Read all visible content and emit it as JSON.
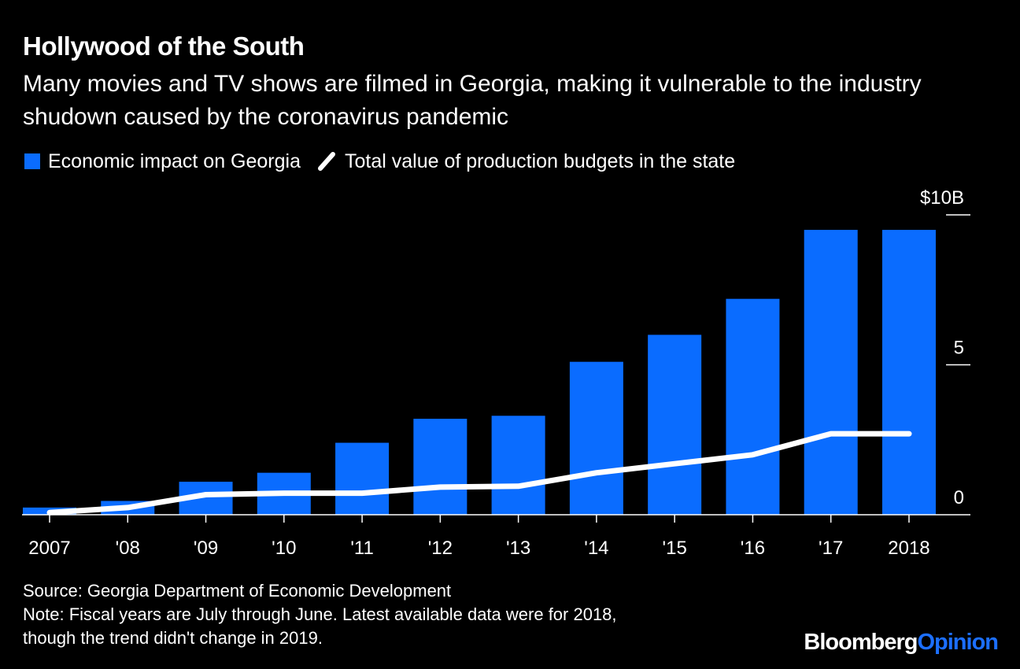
{
  "header": {
    "title": "Hollywood of the South",
    "subtitle": "Many movies and TV shows are filmed in Georgia, making it vulnerable to the industry shudown caused by the coronavirus pandemic"
  },
  "legend": {
    "bar_label": "Economic impact on Georgia",
    "line_label": "Total value of production budgets in the state"
  },
  "colors": {
    "background": "#000000",
    "bar": "#0a6cff",
    "line": "#ffffff",
    "text": "#ffffff",
    "brand_accent": "#1c6fff"
  },
  "chart_data": {
    "type": "bar",
    "categories": [
      "2007",
      "'08",
      "'09",
      "'10",
      "'11",
      "'12",
      "'13",
      "'14",
      "'15",
      "'16",
      "'17",
      "2018"
    ],
    "series": [
      {
        "name": "Economic impact on Georgia",
        "type": "bar",
        "values": [
          0.24,
          0.46,
          1.1,
          1.4,
          2.4,
          3.2,
          3.3,
          5.1,
          6.0,
          7.2,
          9.5,
          9.5
        ]
      },
      {
        "name": "Total value of production budgets in the state",
        "type": "line",
        "values": [
          0.07,
          0.24,
          0.67,
          0.72,
          0.72,
          0.92,
          0.95,
          1.4,
          1.7,
          2.0,
          2.7,
          2.7
        ]
      }
    ],
    "y_ticks": [
      {
        "value": 0,
        "label": "0"
      },
      {
        "value": 5,
        "label": "5"
      },
      {
        "value": 10,
        "label": "$10B"
      }
    ],
    "ylim": [
      0,
      10
    ],
    "grid": false,
    "legend_position": "top-left"
  },
  "footer": {
    "source": "Source: Georgia Department of Economic Development",
    "note_line1": "Note: Fiscal years are July through June. Latest available data were for 2018,",
    "note_line2": "though the trend didn't change in 2019."
  },
  "brand": {
    "part1": "Bloomberg",
    "part2": "Opinion"
  }
}
